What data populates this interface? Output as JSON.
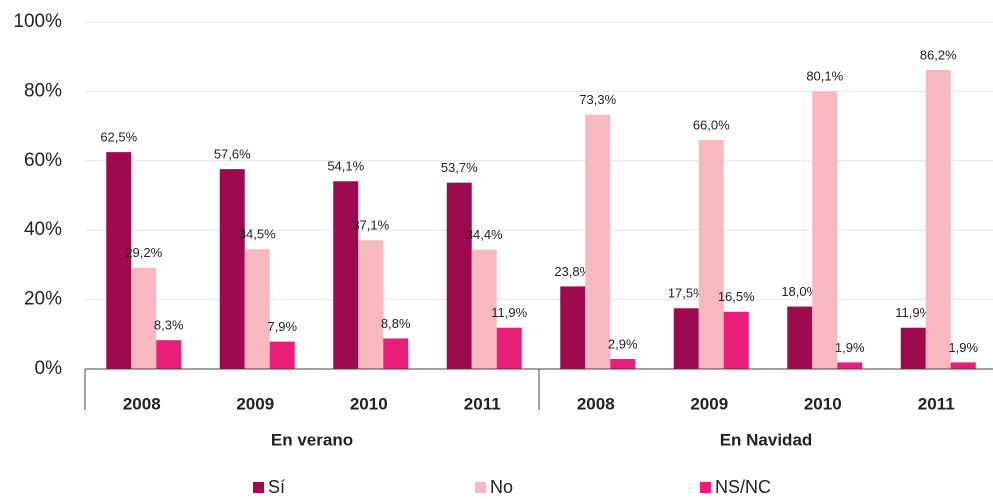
{
  "chart_data": {
    "type": "bar",
    "categories": [
      "2008",
      "2009",
      "2010",
      "2011",
      "2008",
      "2009",
      "2010",
      "2011"
    ],
    "groups": [
      "En verano",
      "En Navidad"
    ],
    "series": [
      {
        "name": "Sí",
        "color": "#9e0a4e",
        "values": [
          62.5,
          57.6,
          54.1,
          53.7,
          23.8,
          17.5,
          18.0,
          11.9
        ],
        "value_labels": [
          "62,5%",
          "57,6%",
          "54,1%",
          "53,7%",
          "23,8%",
          "17,5%",
          "18,0%",
          "11,9%"
        ]
      },
      {
        "name": "No",
        "color": "#f7b8bf",
        "values": [
          29.2,
          34.5,
          37.1,
          34.4,
          73.3,
          66.0,
          80.1,
          86.2
        ],
        "value_labels": [
          "29,2%",
          "34,5%",
          "37,1%",
          "34,4%",
          "73,3%",
          "66,0%",
          "80,1%",
          "86,2%"
        ]
      },
      {
        "name": "NS/NC",
        "color": "#e91e78",
        "values": [
          8.3,
          7.9,
          8.8,
          11.9,
          2.9,
          16.5,
          1.9,
          1.9
        ],
        "value_labels": [
          "8,3%",
          "7,9%",
          "8,8%",
          "11,9%",
          "2,9%",
          "16,5%",
          "1,9%",
          "1,9%"
        ]
      }
    ],
    "ylim": [
      0,
      100
    ],
    "yticks": [
      {
        "value": 0,
        "label": "0%"
      },
      {
        "value": 20,
        "label": "20%"
      },
      {
        "value": 40,
        "label": "40%"
      },
      {
        "value": 60,
        "label": "60%"
      },
      {
        "value": 80,
        "label": "80%"
      },
      {
        "value": 100,
        "label": "100%"
      }
    ],
    "grid": true,
    "legend": "bottom"
  }
}
